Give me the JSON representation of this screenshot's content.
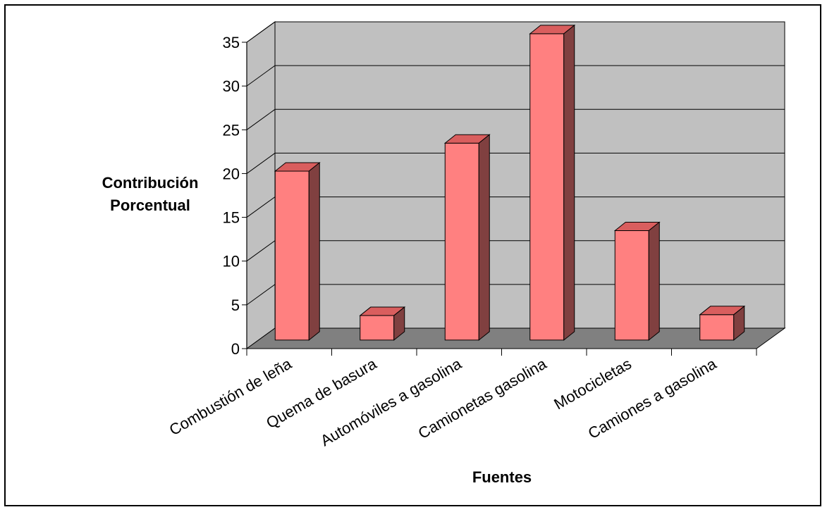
{
  "chart_data": {
    "type": "bar",
    "title": "",
    "xlabel": "Fuentes",
    "ylabel_lines": [
      "Contribución",
      "Porcentual"
    ],
    "categories": [
      "Combustión de leña",
      "Quema de basura",
      "Automóviles a gasolina",
      "Camionetas gasolina",
      "Motocicletas",
      "Camiones a gasolina"
    ],
    "values": [
      19.3,
      2.8,
      22.5,
      35,
      12.5,
      2.9
    ],
    "ylim": [
      0,
      35
    ],
    "yticks": [
      0,
      5,
      10,
      15,
      20,
      25,
      30,
      35
    ],
    "grid": true,
    "legend": false,
    "colors": {
      "bar_front": "#ff8080",
      "bar_top": "#d95e5e",
      "bar_side": "#804040",
      "wall": "#c0c0c0",
      "floor": "#808080"
    }
  }
}
